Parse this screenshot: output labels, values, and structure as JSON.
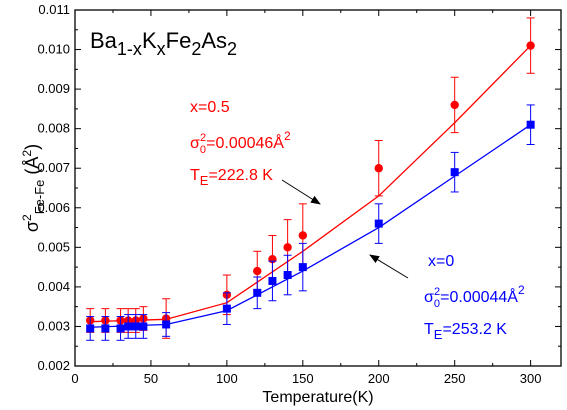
{
  "chart_data": {
    "type": "scatter",
    "x_label": "Temperature(K)",
    "xlim": [
      0,
      320
    ],
    "ylim": [
      0.002,
      0.011
    ],
    "x_ticks": [
      "0",
      "50",
      "100",
      "150",
      "200",
      "250",
      "300"
    ],
    "y_ticks": [
      "0.002",
      "0.003",
      "0.004",
      "0.005",
      "0.006",
      "0.007",
      "0.008",
      "0.009",
      "0.010",
      "0.011"
    ],
    "title": {
      "base": "Ba",
      "sub1": "1-x",
      "mid": "K",
      "sub2": "x",
      "mid2": "Fe",
      "sub3": "2",
      "mid3": "As",
      "sub4": "2"
    },
    "y_label": {
      "sigma": "σ",
      "sup": "2",
      "sub": "Fe-Fe",
      "unit": " (Å",
      "unit_sup": "2",
      "close": ")"
    },
    "series": [
      {
        "color": "#ff0000",
        "marker": "circle",
        "x": [
          10,
          20,
          30,
          35,
          40,
          45,
          60,
          100,
          120,
          130,
          140,
          150,
          200,
          250,
          300
        ],
        "y": [
          0.00315,
          0.00315,
          0.00315,
          0.00315,
          0.00315,
          0.0032,
          0.0032,
          0.0038,
          0.0044,
          0.0047,
          0.005,
          0.0053,
          0.007,
          0.0086,
          0.0101
        ],
        "err": [
          0.0003,
          0.0003,
          0.0003,
          0.0003,
          0.0003,
          0.0003,
          0.0005,
          0.0005,
          0.0005,
          0.0006,
          0.0007,
          0.0008,
          0.0007,
          0.0007,
          0.0007
        ],
        "fit": [
          [
            10,
            0.00312
          ],
          [
            60,
            0.00318
          ],
          [
            100,
            0.0036
          ],
          [
            150,
            0.0049
          ],
          [
            200,
            0.0063
          ],
          [
            250,
            0.00815
          ],
          [
            300,
            0.0101
          ]
        ]
      },
      {
        "color": "#0000ff",
        "marker": "square",
        "x": [
          10,
          20,
          30,
          35,
          40,
          45,
          60,
          100,
          120,
          130,
          140,
          150,
          200,
          250,
          300
        ],
        "y": [
          0.00295,
          0.00295,
          0.00295,
          0.003,
          0.003,
          0.003,
          0.00305,
          0.00345,
          0.00385,
          0.00415,
          0.0043,
          0.0045,
          0.0056,
          0.0069,
          0.0081
        ],
        "err": [
          0.0003,
          0.0003,
          0.0003,
          0.0003,
          0.0003,
          0.0003,
          0.0003,
          0.0004,
          0.0004,
          0.0005,
          0.0005,
          0.0006,
          0.0005,
          0.0005,
          0.0005
        ],
        "fit": [
          [
            10,
            0.00298
          ],
          [
            60,
            0.00305
          ],
          [
            100,
            0.0034
          ],
          [
            150,
            0.0044
          ],
          [
            200,
            0.0055
          ],
          [
            250,
            0.0068
          ],
          [
            300,
            0.0081
          ]
        ]
      }
    ],
    "annotations": {
      "red": {
        "line1": "x=0.5",
        "s": "σ",
        "sub0": "0",
        "sup0": "2",
        "val": "=0.00046Å",
        "valsup": "2",
        "T": "T",
        "Tsub": "E",
        "Tval": "=222.8 K"
      },
      "blue": {
        "line1": "x=0",
        "s": "σ",
        "sub0": "0",
        "sup0": "2",
        "val": "=0.00044Å",
        "valsup": "2",
        "T": "T",
        "Tsub": "E",
        "Tval": "=253.2 K"
      }
    }
  }
}
